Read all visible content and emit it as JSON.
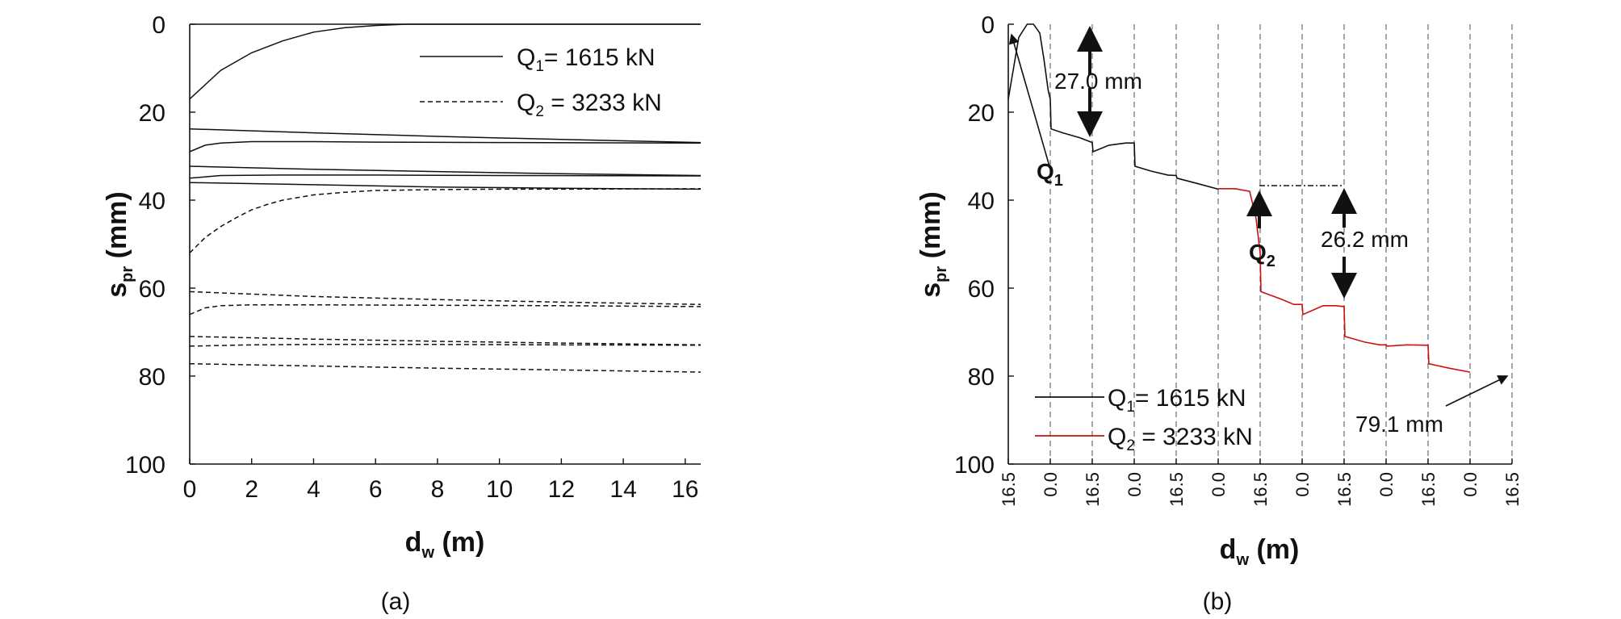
{
  "chart_data": [
    {
      "panel": "a",
      "type": "line",
      "caption": "(a)",
      "xlabel": {
        "main": "d",
        "sub": "w",
        "unit": " (m)"
      },
      "ylabel": {
        "main": "s",
        "sub": "pr",
        "unit": " (mm)"
      },
      "xlim": [
        0,
        16.5
      ],
      "ylim": [
        0,
        100
      ],
      "y_inverted": true,
      "xticks": [
        "0",
        "2",
        "4",
        "6",
        "8",
        "10",
        "12",
        "14",
        "16"
      ],
      "yticks": [
        "0",
        "20",
        "40",
        "60",
        "80",
        "100"
      ],
      "legend": [
        {
          "main": "Q",
          "sub": "1",
          "rest": "= 1615 kN",
          "style": "solid",
          "color": "#111111"
        },
        {
          "main": "Q",
          "sub": "2",
          "rest": " = 3233 kN",
          "style": "dashed",
          "color": "#111111"
        }
      ],
      "series": [
        {
          "group": "Q1",
          "style": "solid",
          "x": [
            0,
            1,
            2,
            3,
            4,
            5,
            6,
            7,
            8,
            16.5
          ],
          "y": [
            17.0,
            10.5,
            6.5,
            3.8,
            1.8,
            0.8,
            0.3,
            0.0,
            0.0,
            0.0
          ]
        },
        {
          "group": "Q1",
          "style": "solid",
          "x": [
            0,
            4,
            8,
            12,
            16.5
          ],
          "y": [
            23.8,
            24.7,
            25.5,
            26.2,
            26.9
          ]
        },
        {
          "group": "Q1",
          "style": "solid",
          "x": [
            0,
            0.5,
            1,
            2,
            3,
            4,
            6,
            10,
            16.5
          ],
          "y": [
            29.0,
            27.5,
            27.0,
            26.7,
            26.7,
            26.7,
            26.8,
            26.9,
            27.0
          ]
        },
        {
          "group": "Q1",
          "style": "solid",
          "x": [
            0,
            4,
            8,
            12,
            16.5
          ],
          "y": [
            32.3,
            33.0,
            33.5,
            34.0,
            34.4
          ]
        },
        {
          "group": "Q1",
          "style": "solid",
          "x": [
            0,
            1,
            3,
            6,
            10,
            16.5
          ],
          "y": [
            35.0,
            34.4,
            34.3,
            34.3,
            34.4,
            34.5
          ]
        },
        {
          "group": "Q1",
          "style": "solid",
          "x": [
            0,
            4,
            8,
            12,
            16.5
          ],
          "y": [
            36.0,
            36.5,
            37.0,
            37.3,
            37.5
          ]
        },
        {
          "group": "Q2",
          "style": "dashed",
          "x": [
            0,
            0.5,
            1,
            1.5,
            2,
            2.5,
            3,
            4,
            5,
            6,
            8,
            10,
            12,
            16.5
          ],
          "y": [
            52.0,
            48.5,
            46.0,
            44.0,
            42.2,
            41.0,
            40.0,
            38.8,
            38.2,
            37.8,
            37.6,
            37.5,
            37.5,
            37.4
          ]
        },
        {
          "group": "Q2",
          "style": "dashed",
          "x": [
            0,
            4,
            8,
            12,
            16.5
          ],
          "y": [
            60.8,
            61.9,
            62.6,
            63.2,
            63.7
          ]
        },
        {
          "group": "Q2",
          "style": "dashed",
          "x": [
            0,
            0.5,
            1,
            2,
            4,
            8,
            12,
            16.5
          ],
          "y": [
            66.0,
            64.5,
            64.0,
            63.8,
            63.8,
            63.9,
            64.0,
            64.2
          ]
        },
        {
          "group": "Q2",
          "style": "dashed",
          "x": [
            0,
            4,
            8,
            12,
            16.5
          ],
          "y": [
            71.0,
            71.6,
            72.1,
            72.5,
            72.9
          ]
        },
        {
          "group": "Q2",
          "style": "dashed",
          "x": [
            0,
            2,
            4,
            8,
            12,
            16.5
          ],
          "y": [
            73.2,
            72.9,
            72.8,
            72.8,
            72.9,
            73.0
          ]
        },
        {
          "group": "Q2",
          "style": "dashed",
          "x": [
            0,
            4,
            8,
            12,
            16.5
          ],
          "y": [
            77.2,
            77.7,
            78.2,
            78.6,
            79.1
          ]
        }
      ]
    },
    {
      "panel": "b",
      "type": "line",
      "caption": "(b)",
      "xlabel": {
        "main": "d",
        "sub": "w",
        "unit": " (m)"
      },
      "ylabel": {
        "main": "s",
        "sub": "pr",
        "unit": " (mm)"
      },
      "ylim": [
        0,
        100
      ],
      "y_inverted": true,
      "x_note": "concatenated passes alternating 16.5 → 0.0 → 16.5",
      "xticks": [
        "16.5",
        "0.0",
        "16.5",
        "0.0",
        "16.5",
        "0.0",
        "16.5",
        "0.0",
        "16.5",
        "0.0",
        "16.5",
        "0.0",
        "16.5"
      ],
      "yticks": [
        "0",
        "20",
        "40",
        "60",
        "80",
        "100"
      ],
      "legend": [
        {
          "main": "Q",
          "sub": "1",
          "rest": "= 1615 kN",
          "color": "#111111"
        },
        {
          "main": "Q",
          "sub": "2",
          "rest": " = 3233 kN",
          "color": "#cc1111"
        }
      ],
      "series": [
        {
          "group": "Q1",
          "color": "#111111",
          "x": [
            0,
            0.25,
            0.45,
            0.6,
            0.75,
            0.85,
            0.95,
            1.0,
            1.02,
            1.3,
            1.7,
            2.0,
            2.02,
            2.4,
            2.8,
            3.0,
            3.02,
            3.4,
            3.8,
            4.0,
            4.02,
            4.5,
            5.0
          ],
          "y": [
            17.0,
            3.0,
            0.0,
            0.0,
            2.0,
            8.0,
            15.0,
            17.0,
            23.8,
            24.7,
            25.8,
            26.9,
            29.0,
            27.5,
            27.0,
            27.0,
            32.3,
            33.4,
            34.3,
            34.4,
            35.0,
            36.2,
            37.5
          ]
        },
        {
          "group": "Q2",
          "color": "#cc1111",
          "x": [
            5.0,
            5.4,
            5.75,
            5.9,
            6.0,
            6.02,
            6.5,
            6.8,
            7.0,
            7.02,
            7.5,
            7.8,
            8.0,
            8.02,
            8.5,
            8.85,
            9.0,
            9.02,
            9.5,
            10.0,
            10.02,
            10.5,
            11.0
          ],
          "y": [
            37.4,
            37.4,
            38.0,
            44.0,
            52.0,
            60.8,
            62.5,
            63.7,
            63.7,
            66.0,
            64.0,
            64.0,
            64.2,
            71.0,
            72.3,
            72.9,
            72.9,
            73.2,
            72.9,
            73.0,
            77.2,
            78.2,
            79.1
          ]
        }
      ],
      "annotations": [
        {
          "text": "27.0 mm",
          "bold": false
        },
        {
          "main": "Q",
          "sub": "1",
          "bold": true
        },
        {
          "main": "Q",
          "sub": "2",
          "bold": true
        },
        {
          "text": "26.2 mm",
          "bold": false
        },
        {
          "text": "79.1 mm",
          "bold": false
        }
      ]
    }
  ]
}
